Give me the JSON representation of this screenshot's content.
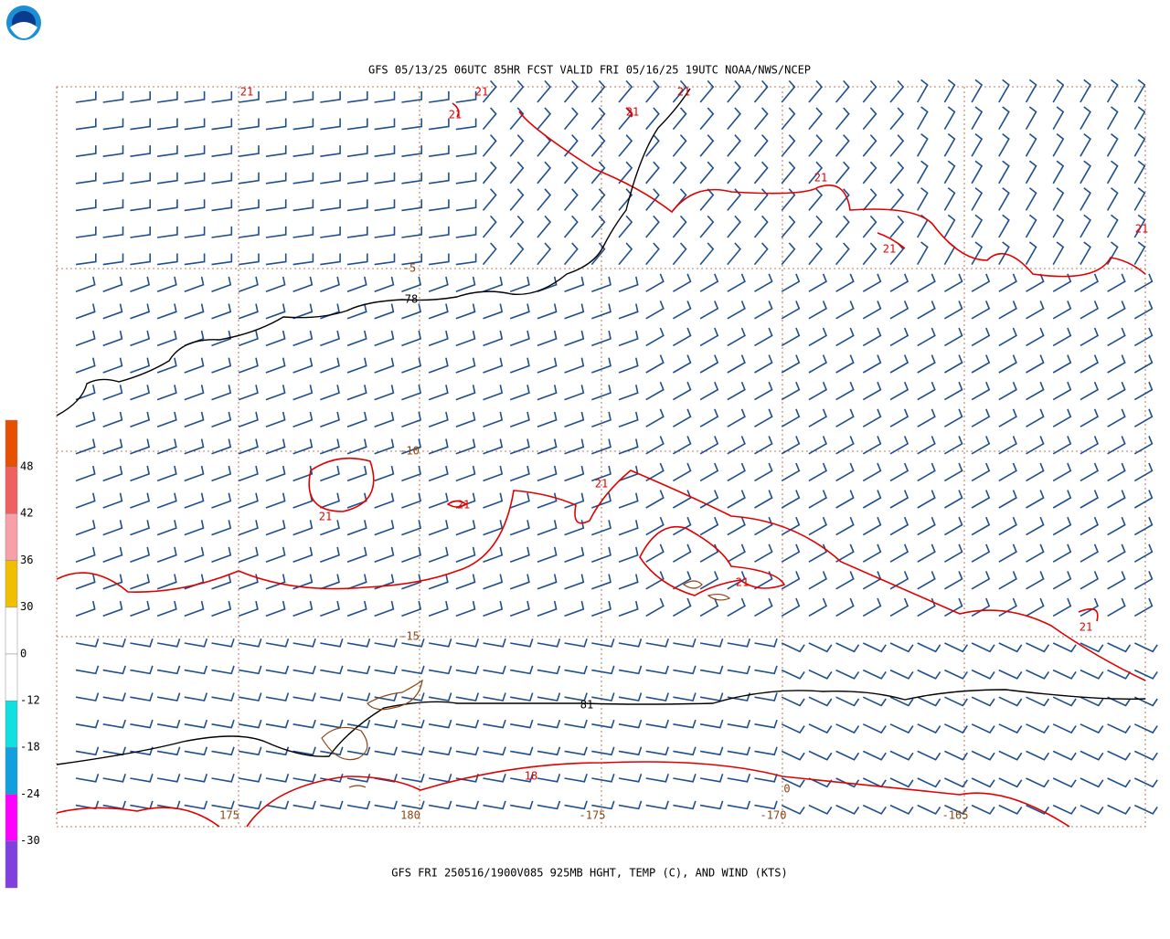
{
  "header": {
    "title": "GFS 05/13/25 06UTC 85HR FCST VALID FRI 05/16/25 19UTC NOAA/NWS/NCEP"
  },
  "footer": {
    "caption": "GFS FRI 250516/1900V085 925MB HGHT, TEMP (C), AND WIND (KTS)"
  },
  "color_scale": {
    "labels": [
      "48",
      "42",
      "36",
      "30",
      "0",
      "-12",
      "-18",
      "-24",
      "-30"
    ]
  },
  "grid_labels": {
    "latitudes": [
      "-5",
      "-10",
      "-15"
    ],
    "longitudes": [
      "175",
      "180",
      "-175",
      "-170",
      "-165"
    ]
  },
  "contour_labels": [
    "21",
    "21",
    "21",
    "21",
    "21",
    "21",
    "21",
    "21",
    "78",
    "21",
    "21",
    "21",
    "21",
    "21",
    "81",
    "18",
    "0"
  ]
}
